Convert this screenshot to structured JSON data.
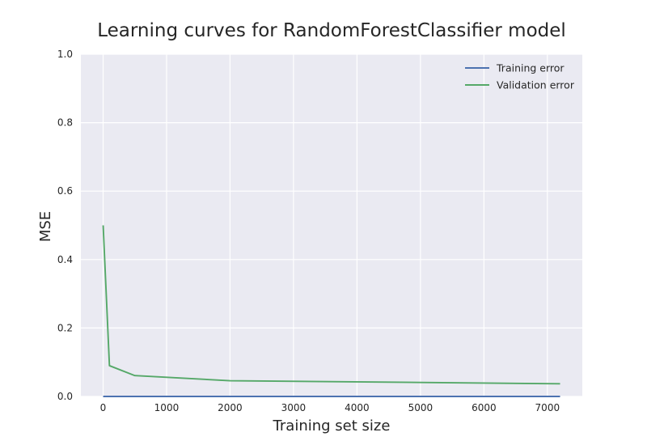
{
  "chart_data": {
    "type": "line",
    "title": "Learning curves for RandomForestClassifier model",
    "xlabel": "Training set size",
    "ylabel": "MSE",
    "xlim": [
      -350,
      7550
    ],
    "ylim": [
      0,
      1
    ],
    "xticks": [
      0,
      1000,
      2000,
      3000,
      4000,
      5000,
      6000,
      7000
    ],
    "yticks": [
      0.0,
      0.2,
      0.4,
      0.6,
      0.8,
      1.0
    ],
    "grid": true,
    "legend_position": "top-right",
    "series": [
      {
        "name": "Training error",
        "color": "#4c72b0",
        "x": [
          1,
          100,
          500,
          2000,
          5000,
          7200
        ],
        "y": [
          0.0,
          0.0,
          0.0,
          0.0,
          0.0,
          0.0
        ]
      },
      {
        "name": "Validation error",
        "color": "#55a868",
        "x": [
          1,
          100,
          500,
          2000,
          5000,
          7200
        ],
        "y": [
          0.5,
          0.09,
          0.061,
          0.046,
          0.041,
          0.037
        ]
      }
    ]
  }
}
